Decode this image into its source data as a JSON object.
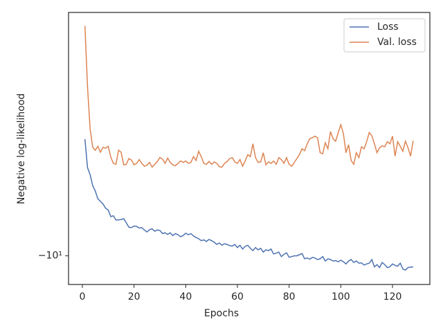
{
  "chart_data": {
    "type": "line",
    "xlabel": "Epochs",
    "ylabel": "Negative log-likelihood",
    "x": [
      1,
      2,
      3,
      4,
      5,
      6,
      7,
      8,
      9,
      10,
      11,
      12,
      13,
      14,
      15,
      16,
      17,
      18,
      19,
      20,
      21,
      22,
      23,
      24,
      25,
      26,
      27,
      28,
      29,
      30,
      31,
      32,
      33,
      34,
      35,
      36,
      37,
      38,
      39,
      40,
      41,
      42,
      43,
      44,
      45,
      46,
      47,
      48,
      49,
      50,
      51,
      52,
      53,
      54,
      55,
      56,
      57,
      58,
      59,
      60,
      61,
      62,
      63,
      64,
      65,
      66,
      67,
      68,
      69,
      70,
      71,
      72,
      73,
      74,
      75,
      76,
      77,
      78,
      79,
      80,
      81,
      82,
      83,
      84,
      85,
      86,
      87,
      88,
      89,
      90,
      91,
      92,
      93,
      94,
      95,
      96,
      97,
      98,
      99,
      100,
      101,
      102,
      103,
      104,
      105,
      106,
      107,
      108,
      109,
      110,
      111,
      112,
      113,
      114,
      115,
      116,
      117,
      118,
      119,
      120,
      121,
      122,
      123,
      124,
      125,
      126,
      127,
      128
    ],
    "series": [
      {
        "name": "Loss",
        "color": "#4c72b0",
        "values": [
          -7.31,
          -7.89,
          -8.04,
          -8.28,
          -8.4,
          -8.58,
          -8.64,
          -8.7,
          -8.8,
          -8.84,
          -9.0,
          -8.98,
          -9.08,
          -9.08,
          -9.07,
          -9.05,
          -9.15,
          -9.26,
          -9.27,
          -9.23,
          -9.24,
          -9.28,
          -9.27,
          -9.33,
          -9.38,
          -9.32,
          -9.3,
          -9.36,
          -9.33,
          -9.34,
          -9.42,
          -9.4,
          -9.44,
          -9.4,
          -9.47,
          -9.42,
          -9.45,
          -9.5,
          -9.47,
          -9.41,
          -9.45,
          -9.42,
          -9.48,
          -9.52,
          -9.55,
          -9.6,
          -9.58,
          -9.62,
          -9.57,
          -9.6,
          -9.64,
          -9.7,
          -9.66,
          -9.72,
          -9.68,
          -9.7,
          -9.73,
          -9.74,
          -9.7,
          -9.78,
          -9.72,
          -9.82,
          -9.75,
          -9.72,
          -9.8,
          -9.86,
          -9.78,
          -9.84,
          -9.8,
          -9.9,
          -9.84,
          -9.86,
          -9.82,
          -9.95,
          -9.93,
          -9.9,
          -10.02,
          -9.96,
          -9.92,
          -10.04,
          -10.02,
          -10.0,
          -10.0,
          -9.97,
          -9.94,
          -10.08,
          -10.06,
          -10.09,
          -10.04,
          -10.06,
          -10.1,
          -10.08,
          -10.02,
          -10.14,
          -10.08,
          -10.1,
          -10.14,
          -10.13,
          -10.16,
          -10.12,
          -10.16,
          -10.22,
          -10.14,
          -10.1,
          -10.18,
          -10.14,
          -10.2,
          -10.19,
          -10.25,
          -10.22,
          -10.2,
          -10.1,
          -10.3,
          -10.24,
          -10.32,
          -10.18,
          -10.24,
          -10.32,
          -10.3,
          -10.22,
          -10.26,
          -10.28,
          -10.2,
          -10.36,
          -10.39,
          -10.32,
          -10.31,
          -10.3
        ]
      },
      {
        "name": "Val. loss",
        "color": "#dd8452",
        "values": [
          -5.39,
          -6.35,
          -7.11,
          -7.47,
          -7.53,
          -7.45,
          -7.57,
          -7.47,
          -7.49,
          -7.45,
          -7.67,
          -7.8,
          -7.82,
          -7.53,
          -7.57,
          -7.83,
          -7.82,
          -7.7,
          -7.73,
          -7.83,
          -7.8,
          -7.72,
          -7.8,
          -7.86,
          -7.84,
          -7.78,
          -7.88,
          -7.82,
          -7.76,
          -7.68,
          -7.71,
          -7.8,
          -7.69,
          -7.78,
          -7.83,
          -7.85,
          -7.8,
          -7.75,
          -7.78,
          -7.75,
          -7.8,
          -7.78,
          -7.66,
          -7.74,
          -7.55,
          -7.66,
          -7.8,
          -7.82,
          -7.76,
          -7.82,
          -7.77,
          -7.8,
          -7.87,
          -7.88,
          -7.8,
          -7.76,
          -7.7,
          -7.68,
          -7.77,
          -7.8,
          -7.72,
          -7.86,
          -7.75,
          -7.62,
          -7.66,
          -7.4,
          -7.68,
          -7.78,
          -7.77,
          -7.58,
          -7.83,
          -7.77,
          -7.8,
          -7.75,
          -7.82,
          -7.68,
          -7.72,
          -7.8,
          -7.68,
          -7.82,
          -7.86,
          -7.78,
          -7.7,
          -7.62,
          -7.5,
          -7.54,
          -7.4,
          -7.3,
          -7.28,
          -7.25,
          -7.28,
          -7.58,
          -7.6,
          -7.38,
          -7.5,
          -7.16,
          -7.3,
          -7.35,
          -7.18,
          -7.03,
          -7.2,
          -7.58,
          -7.42,
          -7.74,
          -7.82,
          -7.58,
          -7.68,
          -7.46,
          -7.5,
          -7.36,
          -7.18,
          -7.24,
          -7.4,
          -7.58,
          -7.48,
          -7.44,
          -7.46,
          -7.36,
          -7.4,
          -7.25,
          -7.65,
          -7.36,
          -7.45,
          -7.55,
          -7.35,
          -7.48,
          -7.65,
          -7.34
        ]
      }
    ],
    "xlim": [
      -5.35,
      134.45
    ],
    "xticks": [
      0,
      20,
      40,
      60,
      80,
      100,
      120
    ],
    "ylim": [
      -10.8,
      -5.2
    ],
    "yticks": [
      {
        "value": -10,
        "label": "−10¹"
      }
    ],
    "yscale": "symlog",
    "legend": "upper right"
  }
}
